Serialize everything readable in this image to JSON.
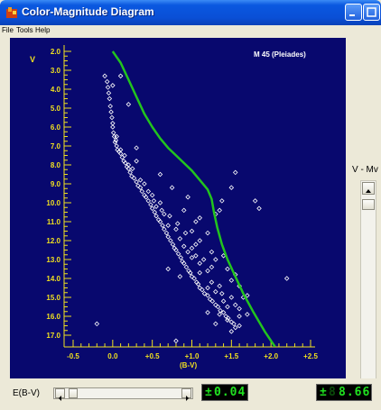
{
  "window": {
    "title": "Color-Magnitude Diagram"
  },
  "menu": [
    "File",
    "Tools",
    "Help"
  ],
  "plot": {
    "title": "M 45 (Pleiades)",
    "ylabel": "V",
    "xlabel": "(B-V)",
    "colors": {
      "background": "#08086e",
      "axes": "#f0e020",
      "points": "#ffffff",
      "curve": "#22c41e"
    }
  },
  "right_panel": {
    "label": "V - Mv"
  },
  "bottom": {
    "label": "E(B-V)",
    "ebv_value": "0.04",
    "ebv_ghost": "0",
    "dm_value": "8.66",
    "dm_ghost": "8"
  },
  "chart_data": {
    "type": "scatter",
    "title": "M 45 (Pleiades)",
    "xlabel": "(B-V)",
    "ylabel": "V",
    "xlim": [
      -0.5,
      2.5
    ],
    "ylim": [
      17.5,
      2.0
    ],
    "y_inverted": true,
    "x_ticks": [
      "-0.5",
      "0.0",
      "+0.5",
      "+1.0",
      "+1.5",
      "+2.0",
      "+2.5"
    ],
    "y_ticks": [
      "2.0",
      "3.0",
      "4.0",
      "5.0",
      "6.0",
      "7.0",
      "8.0",
      "9.0",
      "10.0",
      "11.0",
      "12.0",
      "13.0",
      "14.0",
      "15.0",
      "16.0",
      "17.0"
    ],
    "series": [
      {
        "type": "scatter",
        "points": [
          [
            -0.1,
            3.3
          ],
          [
            -0.07,
            3.6
          ],
          [
            -0.06,
            3.9
          ],
          [
            -0.05,
            4.2
          ],
          [
            -0.04,
            4.5
          ],
          [
            -0.03,
            4.9
          ],
          [
            -0.02,
            5.2
          ],
          [
            -0.01,
            5.5
          ],
          [
            0.0,
            5.8
          ],
          [
            0.0,
            6.0
          ],
          [
            0.01,
            6.3
          ],
          [
            0.02,
            6.5
          ],
          [
            0.03,
            6.8
          ],
          [
            0.04,
            6.7
          ],
          [
            0.05,
            7.0
          ],
          [
            0.06,
            7.2
          ],
          [
            0.08,
            7.3
          ],
          [
            0.1,
            7.4
          ],
          [
            0.12,
            7.6
          ],
          [
            0.14,
            7.8
          ],
          [
            0.16,
            7.9
          ],
          [
            0.18,
            8.1
          ],
          [
            0.2,
            8.2
          ],
          [
            0.22,
            8.4
          ],
          [
            0.24,
            8.6
          ],
          [
            0.27,
            8.7
          ],
          [
            0.3,
            8.9
          ],
          [
            0.32,
            9.1
          ],
          [
            0.35,
            9.2
          ],
          [
            0.37,
            9.4
          ],
          [
            0.4,
            9.6
          ],
          [
            0.42,
            9.7
          ],
          [
            0.45,
            9.9
          ],
          [
            0.48,
            10.1
          ],
          [
            0.5,
            10.3
          ],
          [
            0.53,
            10.5
          ],
          [
            0.55,
            10.7
          ],
          [
            0.58,
            10.9
          ],
          [
            0.6,
            11.0
          ],
          [
            0.63,
            11.2
          ],
          [
            0.65,
            11.4
          ],
          [
            0.68,
            11.6
          ],
          [
            0.7,
            11.8
          ],
          [
            0.73,
            12.0
          ],
          [
            0.76,
            12.2
          ],
          [
            0.78,
            12.4
          ],
          [
            0.8,
            12.5
          ],
          [
            0.83,
            12.7
          ],
          [
            0.86,
            12.9
          ],
          [
            0.88,
            13.1
          ],
          [
            0.9,
            13.2
          ],
          [
            0.93,
            13.4
          ],
          [
            0.96,
            13.6
          ],
          [
            0.98,
            13.7
          ],
          [
            1.0,
            13.9
          ],
          [
            1.03,
            14.0
          ],
          [
            1.06,
            14.2
          ],
          [
            1.08,
            14.3
          ],
          [
            1.1,
            14.5
          ],
          [
            1.13,
            14.6
          ],
          [
            1.16,
            14.8
          ],
          [
            1.2,
            14.9
          ],
          [
            1.23,
            15.1
          ],
          [
            1.26,
            15.2
          ],
          [
            1.3,
            15.4
          ],
          [
            1.33,
            15.5
          ],
          [
            1.36,
            15.7
          ],
          [
            1.4,
            15.8
          ],
          [
            1.43,
            16.0
          ],
          [
            1.46,
            16.1
          ],
          [
            1.5,
            16.3
          ],
          [
            1.53,
            16.4
          ],
          [
            1.55,
            16.6
          ],
          [
            1.4,
            15.2
          ],
          [
            1.45,
            15.5
          ],
          [
            1.38,
            14.8
          ],
          [
            1.5,
            15.0
          ],
          [
            1.55,
            15.4
          ],
          [
            1.6,
            15.6
          ],
          [
            1.35,
            14.4
          ],
          [
            1.25,
            14.2
          ],
          [
            1.2,
            13.6
          ],
          [
            1.1,
            13.2
          ],
          [
            0.95,
            12.6
          ],
          [
            0.9,
            12.3
          ],
          [
            1.05,
            12.8
          ],
          [
            1.0,
            12.4
          ],
          [
            0.85,
            11.9
          ],
          [
            0.7,
            11.2
          ],
          [
            0.65,
            10.6
          ],
          [
            0.55,
            10.2
          ],
          [
            0.45,
            9.4
          ],
          [
            0.35,
            8.8
          ],
          [
            0.25,
            8.2
          ],
          [
            0.15,
            7.5
          ],
          [
            0.05,
            6.5
          ],
          [
            0.3,
            7.1
          ],
          [
            0.6,
            8.5
          ],
          [
            0.75,
            9.2
          ],
          [
            0.9,
            10.4
          ],
          [
            1.05,
            11.0
          ],
          [
            1.0,
            11.5
          ],
          [
            1.1,
            12.0
          ],
          [
            1.25,
            12.6
          ],
          [
            1.3,
            13.0
          ],
          [
            1.45,
            13.5
          ],
          [
            1.55,
            13.8
          ],
          [
            1.6,
            14.4
          ],
          [
            1.65,
            15.0
          ],
          [
            1.2,
            15.8
          ],
          [
            1.3,
            16.4
          ],
          [
            1.5,
            16.8
          ],
          [
            1.6,
            16.5
          ],
          [
            1.7,
            15.9
          ],
          [
            0.95,
            9.7
          ],
          [
            1.3,
            10.6
          ],
          [
            1.35,
            10.4
          ],
          [
            1.38,
            9.9
          ],
          [
            1.5,
            9.2
          ],
          [
            1.55,
            8.4
          ],
          [
            1.8,
            9.9
          ],
          [
            1.85,
            10.3
          ],
          [
            2.2,
            14.0
          ],
          [
            0.8,
            17.3
          ],
          [
            -0.2,
            16.4
          ],
          [
            0.1,
            3.3
          ],
          [
            0.0,
            3.8
          ],
          [
            0.2,
            4.8
          ],
          [
            0.3,
            7.8
          ],
          [
            0.5,
            9.6
          ],
          [
            1.1,
            10.8
          ],
          [
            1.2,
            11.6
          ],
          [
            1.4,
            12.8
          ],
          [
            1.1,
            13.7
          ],
          [
            0.7,
            13.5
          ],
          [
            0.85,
            13.9
          ],
          [
            1.35,
            15.9
          ],
          [
            1.45,
            16.2
          ],
          [
            1.6,
            16.0
          ],
          [
            1.7,
            14.9
          ],
          [
            1.2,
            14.5
          ],
          [
            1.0,
            12.9
          ],
          [
            0.8,
            11.4
          ],
          [
            0.6,
            10.0
          ],
          [
            0.4,
            9.0
          ],
          [
            0.2,
            8.0
          ],
          [
            0.1,
            7.2
          ],
          [
            1.5,
            14.1
          ],
          [
            1.3,
            14.7
          ],
          [
            1.25,
            13.4
          ],
          [
            1.15,
            13.0
          ],
          [
            1.05,
            12.2
          ],
          [
            0.92,
            11.6
          ],
          [
            0.82,
            11.1
          ],
          [
            0.72,
            10.7
          ],
          [
            0.62,
            10.4
          ],
          [
            0.52,
            9.9
          ]
        ]
      },
      {
        "type": "line",
        "points": [
          [
            0.0,
            2.0
          ],
          [
            0.1,
            2.6
          ],
          [
            0.2,
            3.5
          ],
          [
            0.3,
            4.4
          ],
          [
            0.4,
            5.3
          ],
          [
            0.5,
            6.0
          ],
          [
            0.6,
            6.6
          ],
          [
            0.7,
            7.1
          ],
          [
            0.8,
            7.5
          ],
          [
            0.9,
            7.9
          ],
          [
            1.0,
            8.3
          ],
          [
            1.1,
            8.8
          ],
          [
            1.2,
            9.3
          ],
          [
            1.25,
            9.8
          ],
          [
            1.28,
            10.5
          ],
          [
            1.32,
            11.3
          ],
          [
            1.38,
            12.2
          ],
          [
            1.45,
            13.0
          ],
          [
            1.55,
            13.9
          ],
          [
            1.65,
            14.8
          ],
          [
            1.78,
            15.8
          ],
          [
            1.92,
            16.8
          ],
          [
            2.05,
            17.6
          ]
        ]
      }
    ]
  }
}
